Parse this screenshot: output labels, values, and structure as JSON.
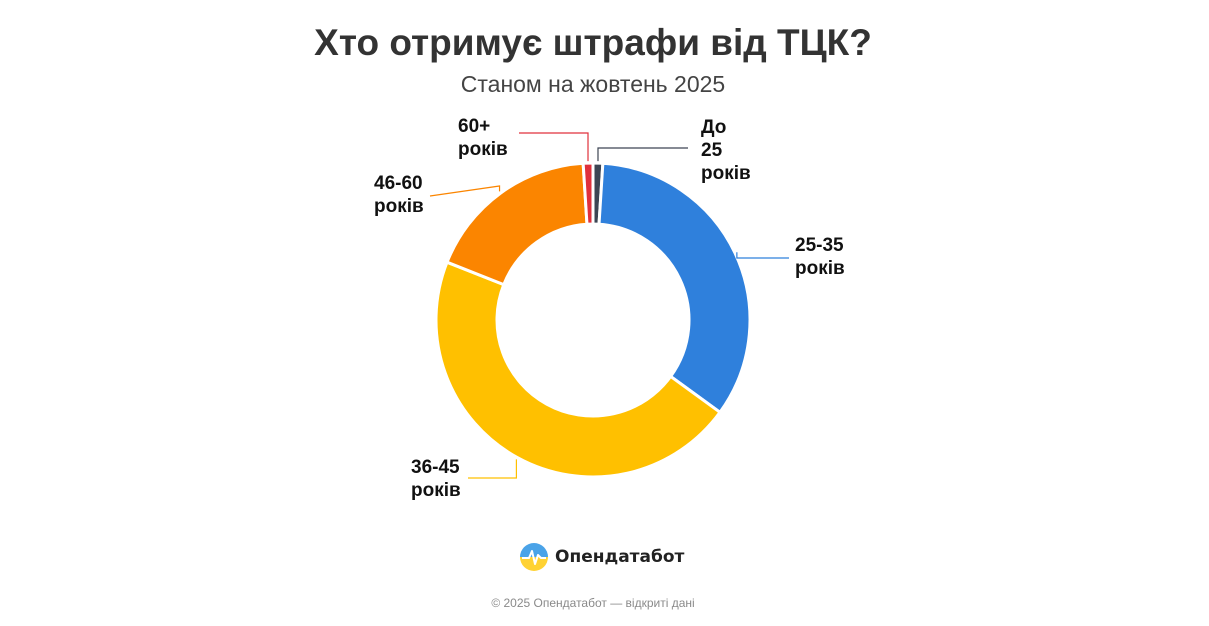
{
  "title": "Хто отримує штрафи від ТЦК?",
  "subtitle": "Станом на жовтень 2025",
  "brand": {
    "name": "Опендатабот",
    "logo_icon": "opendatabot-logo-icon"
  },
  "footer": "© 2025 Опендатабот — відкриті дані",
  "chart_data": {
    "type": "pie",
    "variant": "donut",
    "title": "Хто отримує штрафи від ТЦК?",
    "subtitle": "Станом на жовтень 2025",
    "legend": "none",
    "categories": [
      "До 25 років",
      "25-35 років",
      "36-45 років",
      "46-60 років",
      "60+ років"
    ],
    "values": [
      1,
      34,
      46,
      18,
      1
    ],
    "colors": [
      "#3d4553",
      "#2f80dc",
      "#ffc000",
      "#fb8500",
      "#e0303c"
    ],
    "labels": [
      {
        "lines": [
          "До",
          "25",
          "років"
        ]
      },
      {
        "lines": [
          "25-35",
          "років"
        ]
      },
      {
        "lines": [
          "36-45",
          "років"
        ]
      },
      {
        "lines": [
          "46-60",
          "років"
        ]
      },
      {
        "lines": [
          "60+",
          "років"
        ]
      }
    ]
  }
}
